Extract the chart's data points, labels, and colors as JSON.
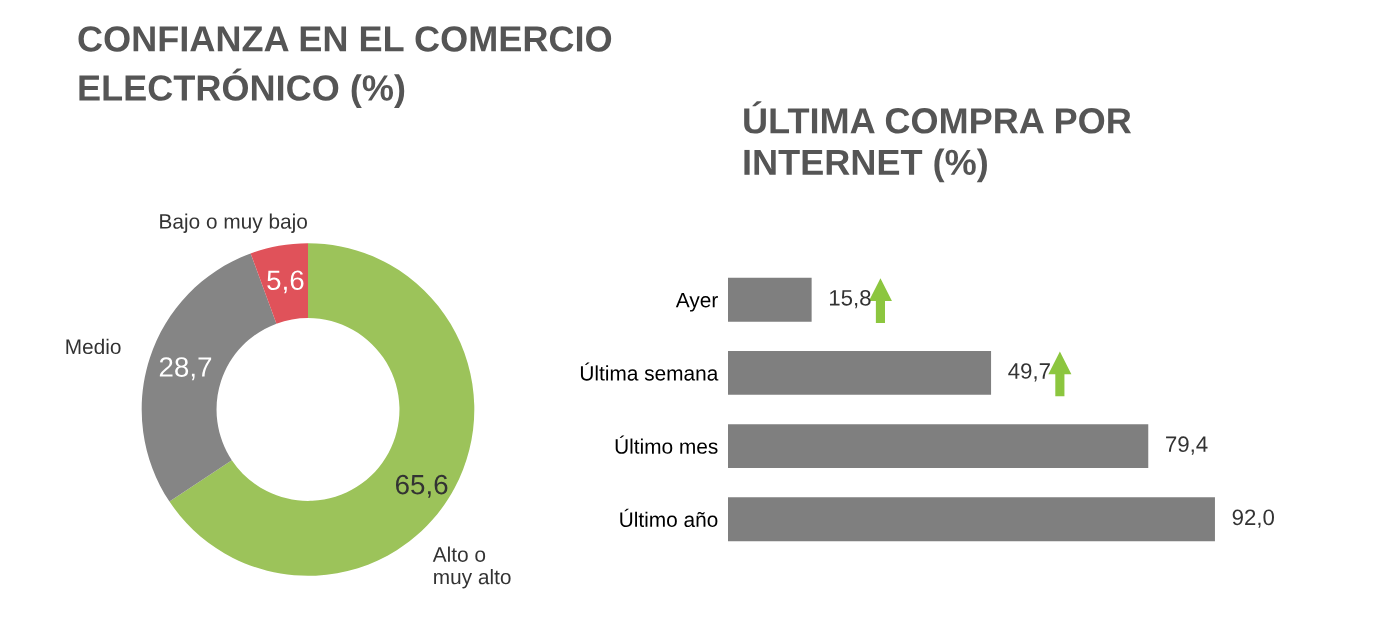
{
  "chart_data": [
    {
      "type": "donut",
      "title": "CONFIANZA EN EL COMERCIO\nELECTRÓNICO (%)",
      "categories": [
        "Alto o\nmuy alto",
        "Medio",
        "Bajo o muy bajo"
      ],
      "values": [
        65.6,
        28.7,
        5.6
      ],
      "colors": [
        "#9cc35a",
        "#858585",
        "#e0525a"
      ],
      "value_labels": [
        "65,6",
        "28,7",
        "5,6"
      ]
    },
    {
      "type": "bar",
      "orientation": "horizontal",
      "title": "ÚLTIMA COMPRA POR\nINTERNET (%)",
      "categories": [
        "Ayer",
        "Última semana",
        "Último mes",
        "Último año"
      ],
      "values": [
        15.8,
        49.7,
        79.4,
        92.0
      ],
      "colors": [
        "#7f7f7f",
        "#7f7f7f",
        "#7f7f7f",
        "#7f7f7f"
      ],
      "value_labels": [
        "15,8",
        "49,7",
        "79,4",
        "92,0"
      ]
    }
  ]
}
